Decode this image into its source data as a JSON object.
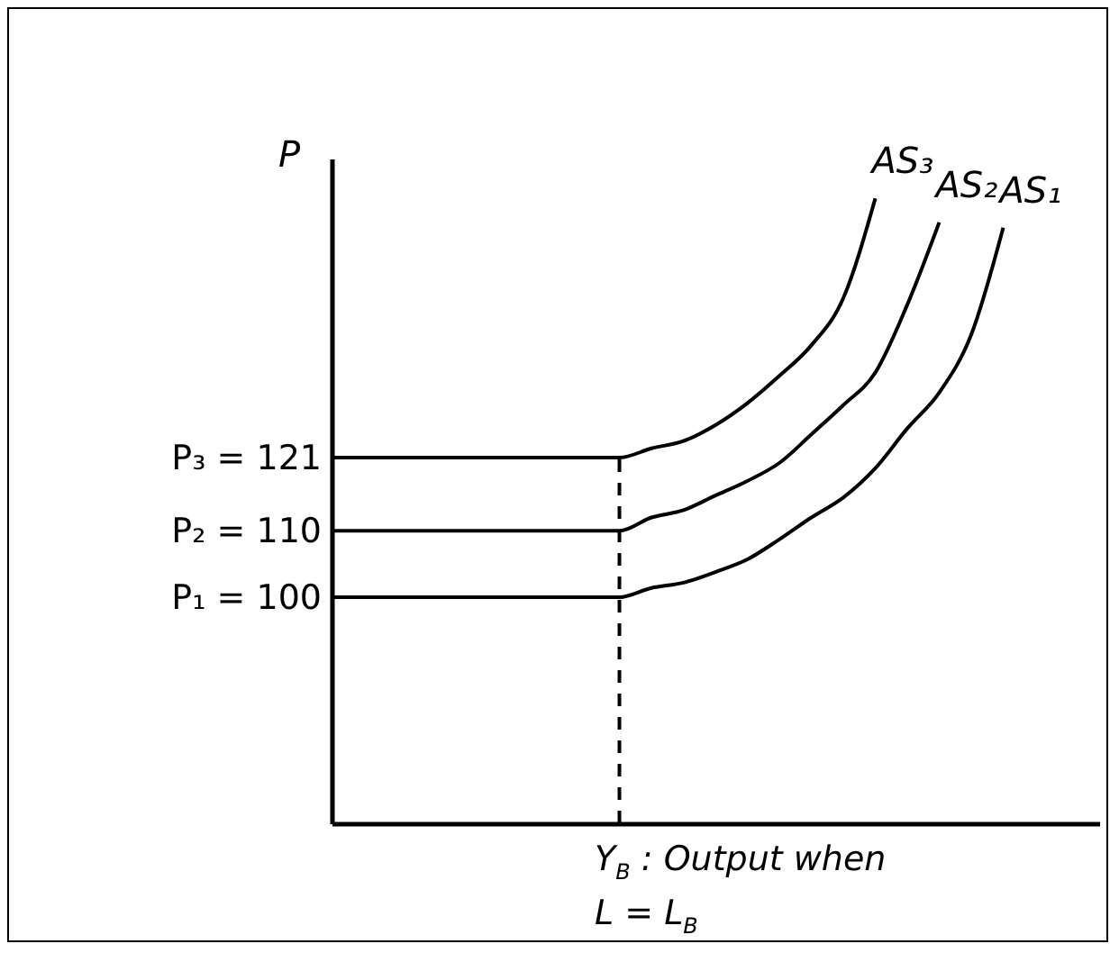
{
  "chart_data": {
    "type": "line",
    "xlabel": "Y$_{B}$ : Output when L = L$_{B}$",
    "ylabel": "P",
    "categories": [
      null,
      null,
      null,
      null,
      null,
      null,
      null,
      null,
      null,
      null,
      null,
      null,
      null,
      null,
      null,
      null,
      null,
      null,
      null,
      null,
      null,
      null,
      null,
      null,
      null
    ],
    "ylim": [
      66,
      166
    ],
    "yticks": [
      {
        "value": 100,
        "label": "P₁ = 100"
      },
      {
        "value": 110,
        "label": "P₂ = 110"
      },
      {
        "value": 121,
        "label": "P₃ = 121"
      }
    ],
    "tick_labels": "y",
    "grid": false,
    "series": [
      {
        "name": "AS₃",
        "color": "#000000",
        "values": [
          121,
          121,
          121,
          121,
          121,
          121,
          121,
          121,
          121,
          121,
          122.4,
          123.5,
          125.9,
          129.2,
          133.3,
          137.9,
          145,
          160,
          null,
          null,
          null,
          null,
          null,
          null,
          null
        ]
      },
      {
        "name": "AS₂",
        "color": "#000000",
        "values": [
          110,
          110,
          110,
          110,
          110,
          110,
          110,
          110,
          110,
          110,
          112,
          113.1,
          115.3,
          117.5,
          120.2,
          124.5,
          128.9,
          133.8,
          144,
          156.4,
          null,
          null,
          null,
          null,
          null
        ]
      },
      {
        "name": "AS₁",
        "color": "#000000",
        "values": [
          100,
          100,
          100,
          100,
          100,
          100,
          100,
          100,
          100,
          100,
          101.4,
          102.2,
          103.8,
          105.7,
          108.7,
          112,
          115,
          119.4,
          125.4,
          130.8,
          139.5,
          155.6,
          null,
          null,
          null
        ]
      }
    ]
  }
}
